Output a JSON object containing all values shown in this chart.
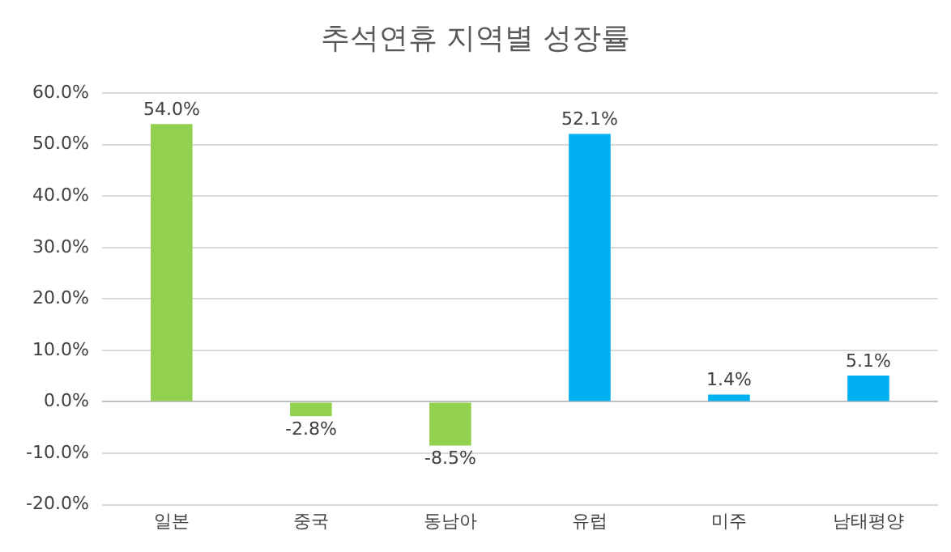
{
  "chart_data": {
    "type": "bar",
    "title": "추석연휴 지역별 성장률",
    "categories": [
      "일본",
      "중국",
      "동남아",
      "유럽",
      "미주",
      "남태평양"
    ],
    "values": [
      54.0,
      -2.8,
      -8.5,
      52.1,
      1.4,
      5.1
    ],
    "colors": [
      "#92d050",
      "#92d050",
      "#92d050",
      "#00b0f0",
      "#00b0f0",
      "#00b0f0"
    ],
    "value_labels": [
      "54.0%",
      "-2.8%",
      "-8.5%",
      "52.1%",
      "1.4%",
      "5.1%"
    ],
    "ylim": [
      -20,
      60
    ],
    "yticks": [
      {
        "value": -20,
        "label": "-20.0%"
      },
      {
        "value": -10,
        "label": "-10.0%"
      },
      {
        "value": 0,
        "label": "0.0%"
      },
      {
        "value": 10,
        "label": "10.0%"
      },
      {
        "value": 20,
        "label": "20.0%"
      },
      {
        "value": 30,
        "label": "30.0%"
      },
      {
        "value": 40,
        "label": "40.0%"
      },
      {
        "value": 50,
        "label": "50.0%"
      },
      {
        "value": 60,
        "label": "60.0%"
      }
    ],
    "grid": "y"
  }
}
